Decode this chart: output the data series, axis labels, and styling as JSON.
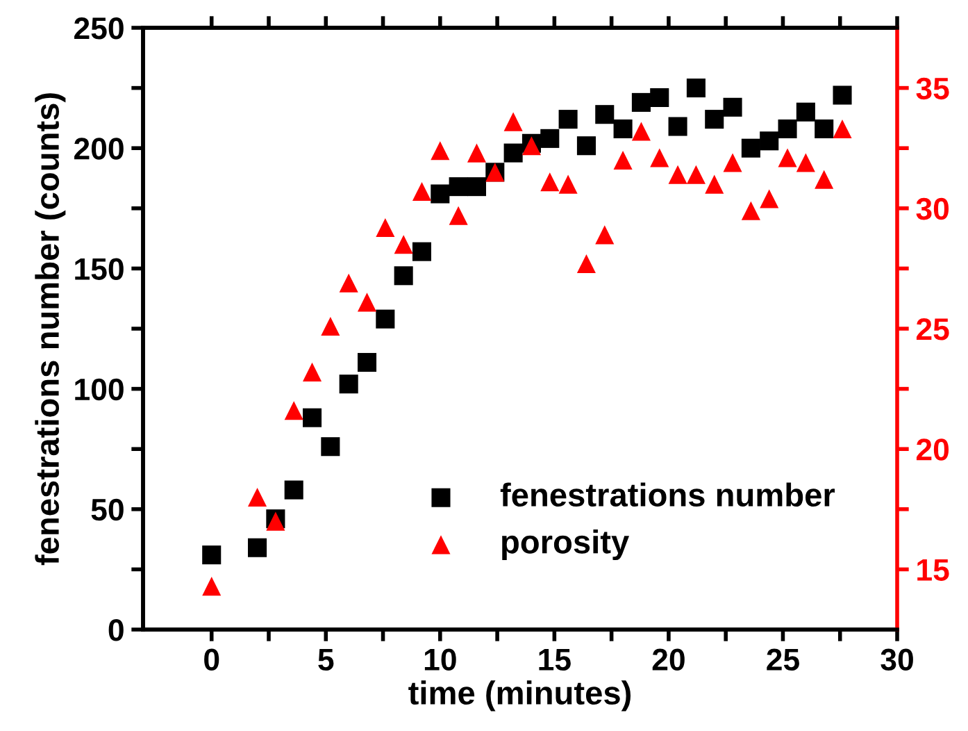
{
  "chart_data": {
    "type": "scatter",
    "xlabel": "time (minutes)",
    "ylabel": "fenestrations number (counts)",
    "xlim": [
      -3,
      30
    ],
    "xticks": [
      0,
      {
        "value": 2.5,
        "label": null
      },
      5,
      {
        "value": 7.5,
        "label": null
      },
      10,
      {
        "value": 12.5,
        "label": null
      },
      15,
      {
        "value": 17.5,
        "label": null
      },
      20,
      {
        "value": 22.5,
        "label": null
      },
      25,
      {
        "value": 27.5,
        "label": null
      },
      30
    ],
    "ylim": [
      0,
      250
    ],
    "yticks": [
      0,
      {
        "value": 25,
        "label": null
      },
      50,
      {
        "value": 75,
        "label": null
      },
      100,
      {
        "value": 125,
        "label": null
      },
      150,
      {
        "value": 175,
        "label": null
      },
      200,
      {
        "value": 225,
        "label": null
      },
      250
    ],
    "y2lim": [
      12.5,
      37.5
    ],
    "y2ticks": [
      15,
      {
        "value": 17.5,
        "label": null
      },
      20,
      {
        "value": 22.5,
        "label": null
      },
      25,
      {
        "value": 27.5,
        "label": null
      },
      30,
      {
        "value": 32.5,
        "label": null
      },
      35
    ],
    "legend": "bottom right",
    "grid": false,
    "series": [
      {
        "name": "fenestrations number",
        "color": "#000000",
        "marker": "square",
        "x": [
          0,
          2,
          2.8,
          3.6,
          4.4,
          5.2,
          6,
          6.8,
          7.6,
          8.4,
          9.2,
          10,
          10.8,
          11.6,
          12.4,
          13.2,
          14,
          14.8,
          15.6,
          16.4,
          17.2,
          18,
          18.8,
          19.6,
          20.4,
          21.2,
          22,
          22.8,
          23.6,
          24.4,
          25.2,
          26,
          26.8,
          27.6
        ],
        "values": [
          31,
          34,
          46,
          58,
          88,
          76,
          102,
          111,
          129,
          147,
          157,
          181,
          184,
          184,
          190,
          198,
          202,
          204,
          212,
          201,
          214,
          208,
          219,
          221,
          209,
          225,
          212,
          217,
          200,
          203,
          208,
          215,
          208,
          222
        ]
      },
      {
        "name": "porosity",
        "color": "#ff0000",
        "marker": "triangle",
        "axis": "y2",
        "x": [
          0,
          2,
          2.8,
          3.6,
          4.4,
          5.2,
          6,
          6.8,
          7.6,
          8.4,
          9.2,
          10,
          10.8,
          11.6,
          12.4,
          13.2,
          14,
          14.8,
          15.6,
          16.4,
          17.2,
          18,
          18.8,
          19.6,
          20.4,
          21.2,
          22,
          22.8,
          23.6,
          24.4,
          25.2,
          26,
          26.8,
          27.6
        ],
        "values": [
          14.3,
          18.0,
          17.0,
          21.6,
          23.2,
          25.1,
          26.9,
          26.1,
          29.2,
          28.5,
          30.7,
          32.4,
          29.7,
          32.3,
          31.5,
          33.6,
          32.6,
          31.1,
          31.0,
          27.7,
          28.9,
          32.0,
          33.2,
          32.1,
          31.4,
          31.4,
          31.0,
          31.9,
          29.9,
          30.4,
          32.1,
          31.9,
          31.2,
          33.3
        ]
      }
    ]
  }
}
